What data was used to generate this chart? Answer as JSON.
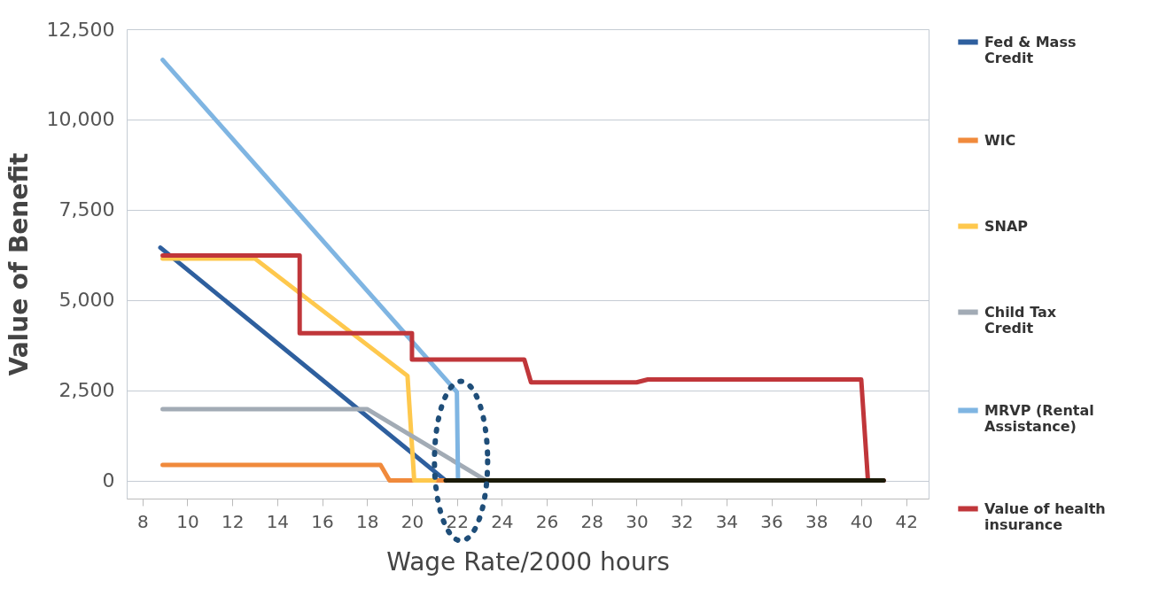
{
  "chart_data": {
    "type": "line",
    "xlabel": "Wage Rate/2000 hours",
    "ylabel": "Value of Benefit",
    "xlim": [
      7.3,
      43
    ],
    "xticks": [
      8,
      10,
      12,
      14,
      16,
      18,
      20,
      22,
      24,
      26,
      28,
      30,
      32,
      34,
      36,
      38,
      40,
      42
    ],
    "ylim": [
      -500,
      12500
    ],
    "yticks": [
      0,
      {
        "value": 2500,
        "label": "2,500"
      },
      {
        "value": 5000,
        "label": "5,000"
      },
      {
        "value": 7500,
        "label": "7,500"
      },
      {
        "value": 10000,
        "label": "10,000"
      },
      {
        "value": 12500,
        "label": "12,500"
      }
    ],
    "grid": "y",
    "legend": "right",
    "line_style": "solid",
    "marker": "none",
    "series": [
      {
        "name": "Fed & Mass Credit",
        "color": "#2e5f9e",
        "x": [
          8.8,
          21.5
        ],
        "values": [
          6450,
          0
        ]
      },
      {
        "name": "WIC",
        "color": "#f08a3c",
        "x": [
          8.9,
          18.6,
          19,
          21.5
        ],
        "values": [
          430,
          430,
          0,
          0
        ]
      },
      {
        "name": "SNAP",
        "color": "#fec84d",
        "x": [
          8.9,
          13,
          19.8,
          20.1,
          21
        ],
        "values": [
          6150,
          6150,
          2900,
          0,
          0
        ]
      },
      {
        "name": "Child Tax Credit",
        "color": "#a2abb5",
        "x": [
          8.9,
          18,
          23.3
        ],
        "values": [
          1980,
          1980,
          0
        ]
      },
      {
        "name": "MRVP (Rental Assistance)",
        "color": "#7fb5e2",
        "x": [
          8.9,
          22,
          22.05
        ],
        "values": [
          11650,
          2450,
          0
        ]
      },
      {
        "name": "Value of health insurance",
        "color": "#c0363a",
        "x": [
          8.9,
          15,
          15,
          20,
          20,
          25,
          25.3,
          30,
          30.5,
          40,
          40.3,
          41
        ],
        "values": [
          6230,
          6230,
          4080,
          4080,
          3350,
          3350,
          2720,
          2720,
          2800,
          2800,
          0,
          0
        ]
      },
      {
        "color": "#1a1a08",
        "x": [
          21.5,
          41
        ],
        "values": [
          0,
          0
        ]
      }
    ]
  }
}
